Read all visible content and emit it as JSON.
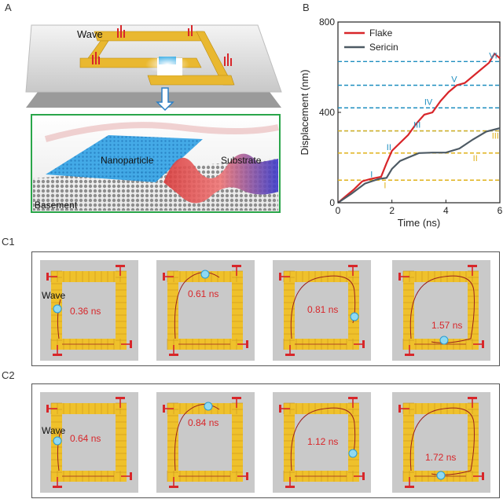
{
  "panel_a": {
    "letter": "A",
    "wave_label": "Wave",
    "nanoparticle_label": "Nanoparticle",
    "substrate_label": "Substrate",
    "basement_label": "Basement"
  },
  "panel_b": {
    "letter": "B",
    "chart_data": {
      "type": "line",
      "xlabel": "Time (ns)",
      "ylabel": "Displacement (nm)",
      "xlim": [
        0,
        6
      ],
      "ylim": [
        0,
        800
      ],
      "xticks": [
        "0",
        "2",
        "4",
        "6"
      ],
      "yticks": [
        "0",
        "400",
        "800"
      ],
      "legend_position": "top-left",
      "series": [
        {
          "name": "Flake",
          "color": "#d8262a",
          "x": [
            0,
            0.3,
            0.6,
            0.9,
            1.2,
            1.6,
            1.8,
            2.0,
            2.3,
            2.6,
            2.9,
            3.2,
            3.5,
            3.8,
            4.1,
            4.4,
            4.7,
            5.0,
            5.3,
            5.6,
            5.8,
            6.0
          ],
          "y": [
            0,
            30,
            60,
            95,
            105,
            115,
            175,
            230,
            265,
            300,
            350,
            390,
            400,
            450,
            490,
            520,
            530,
            560,
            590,
            620,
            660,
            640
          ]
        },
        {
          "name": "Sericin",
          "color": "#4d5a64",
          "x": [
            0,
            0.5,
            1.0,
            1.5,
            1.8,
            2.0,
            2.3,
            2.6,
            3.0,
            3.5,
            4.0,
            4.5,
            5.0,
            5.5,
            6.0
          ],
          "y": [
            0,
            40,
            85,
            105,
            110,
            150,
            185,
            200,
            220,
            222,
            222,
            240,
            280,
            315,
            330
          ]
        }
      ],
      "reference_lines": [
        {
          "label": "I",
          "y": 100,
          "color": "#1f8fc0"
        },
        {
          "label": "II",
          "y": 220,
          "color": "#1f8fc0"
        },
        {
          "label": "III",
          "y": 318,
          "color": "#1f8fc0"
        },
        {
          "label": "IV",
          "y": 420,
          "color": "#1f8fc0"
        },
        {
          "label": "V",
          "y": 520,
          "color": "#1f8fc0"
        },
        {
          "label": "VI",
          "y": 625,
          "color": "#1f8fc0"
        },
        {
          "label": "I",
          "y": 100,
          "color": "#e0b21a"
        },
        {
          "label": "II",
          "y": 220,
          "color": "#e0b21a"
        },
        {
          "label": "III",
          "y": 318,
          "color": "#e0b21a"
        }
      ]
    }
  },
  "panel_c1": {
    "letter": "C1",
    "wave_label": "Wave",
    "times": [
      "0.36 ns",
      "0.61 ns",
      "0.81 ns",
      "1.57 ns"
    ]
  },
  "panel_c2": {
    "letter": "C2",
    "wave_label": "Wave",
    "times": [
      "0.64 ns",
      "0.84 ns",
      "1.12 ns",
      "1.72 ns"
    ]
  }
}
